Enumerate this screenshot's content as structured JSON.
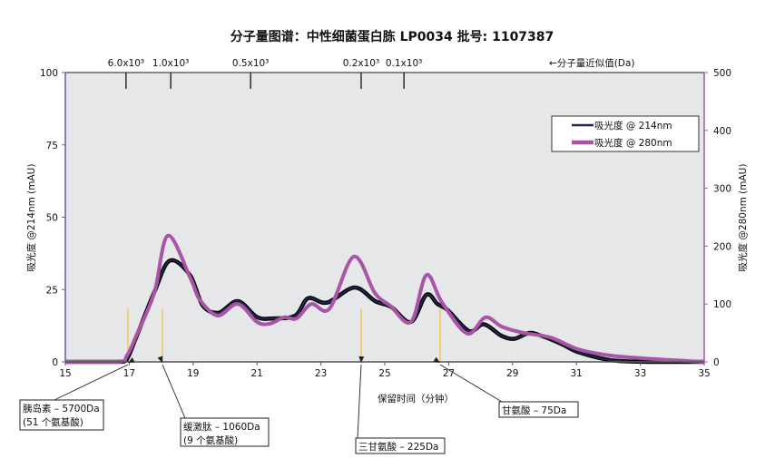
{
  "chart_data": {
    "type": "line",
    "title": "分子量图谱：中性细菌蛋白胨 LP0034  批号: 1107387",
    "xlabel": "保留时间（分钟）",
    "ylabel_left": "吸光度 @214nm (mAU)",
    "ylabel_right": "吸光度 @280nm (mAU)",
    "xlim": [
      15,
      35
    ],
    "ylim_left": [
      0,
      100
    ],
    "ylim_right": [
      0,
      500
    ],
    "x_ticks": [
      "15",
      "17",
      "19",
      "21",
      "23",
      "25",
      "27",
      "29",
      "31",
      "33",
      "35"
    ],
    "y_ticks_left": [
      "0",
      "25",
      "50",
      "75",
      "100"
    ],
    "y_ticks_right": [
      "0",
      "100",
      "200",
      "300",
      "400",
      "500"
    ],
    "grid": false,
    "legend_position": "top-right",
    "series": [
      {
        "name": "吸光度 @ 214nm",
        "axis": "left",
        "color": "#23244a",
        "x": [
          15,
          16.6,
          16.9,
          17.2,
          17.78,
          18.27,
          18.9,
          19.3,
          19.8,
          20.4,
          21.0,
          21.5,
          22.2,
          22.6,
          23.2,
          24.05,
          24.7,
          25.2,
          25.82,
          26.3,
          26.65,
          26.96,
          27.64,
          28.1,
          28.66,
          29.06,
          29.52,
          29.91,
          30.57,
          31.05,
          32.07,
          33.4,
          35
        ],
        "y": [
          0,
          0,
          0.5,
          8,
          24,
          35,
          30,
          19.5,
          17,
          21,
          15.5,
          15,
          16,
          22,
          20.5,
          25.7,
          21,
          19,
          13.8,
          23.2,
          20,
          18,
          10.7,
          13,
          9,
          8,
          10,
          9,
          6,
          3.4,
          0.6,
          0,
          0
        ]
      },
      {
        "name": "吸光度 @ 280nm",
        "axis": "right",
        "color": "#a855a8",
        "x": [
          15,
          16.65,
          16.93,
          17.22,
          17.78,
          18.21,
          18.92,
          19.2,
          19.77,
          20.4,
          21.0,
          21.4,
          21.85,
          22.24,
          22.7,
          23.27,
          24.03,
          24.69,
          25.17,
          25.82,
          26.3,
          26.79,
          27.58,
          28.15,
          28.66,
          29.35,
          30.2,
          31.05,
          32.07,
          33.4,
          35
        ],
        "y": [
          0,
          0,
          11,
          45,
          119,
          218,
          144,
          108,
          80,
          100,
          69,
          66,
          77,
          75,
          100,
          92,
          182,
          119,
          97,
          69,
          150,
          103,
          49,
          77,
          61,
          50,
          42,
          22,
          11,
          5,
          0
        ]
      }
    ],
    "mw_markers": {
      "label": "←分子量近似值(Da)",
      "items": [
        {
          "label": "6.0x10³",
          "x": 16.9
        },
        {
          "label": "1.0x10³",
          "x": 18.3
        },
        {
          "label": "0.5x10³",
          "x": 20.8
        },
        {
          "label": "0.2x10³",
          "x": 24.26
        },
        {
          "label": "0.1x10³",
          "x": 25.6
        }
      ]
    },
    "standards": {
      "color": "#f5c242",
      "items": [
        {
          "lines": [
            "胰岛素 – 5700Da",
            "(51 个氨基酸)"
          ],
          "x": 16.96
        },
        {
          "lines": [
            "缓激肽 – 1060Da",
            "(9 个氨基酸)"
          ],
          "x": 18.04
        },
        {
          "lines": [
            "三甘氨酸 – 225Da"
          ],
          "x": 24.26
        },
        {
          "lines": [
            "甘氨酸  – 75Da"
          ],
          "x": 26.73
        }
      ]
    }
  }
}
